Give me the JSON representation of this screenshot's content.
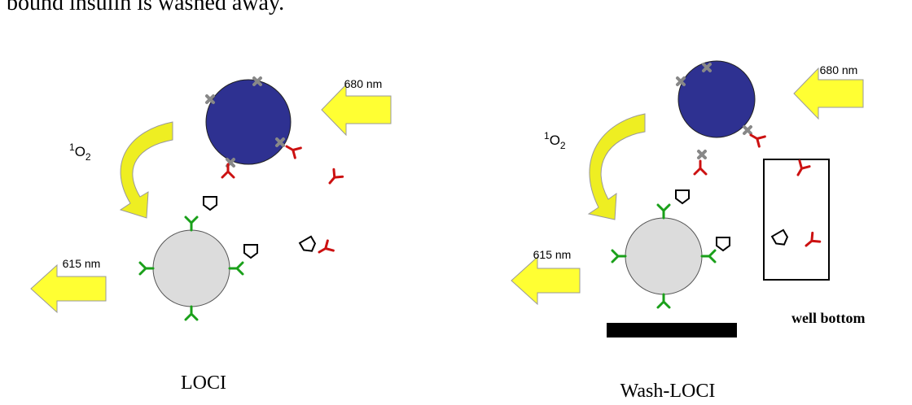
{
  "header": {
    "text": "bound insulin is washed away."
  },
  "panels": [
    {
      "caption": "LOCI",
      "excitation": "680 nm",
      "emission": "615 nm",
      "singlet_oxygen": {
        "mass": "1",
        "symbol": "O",
        "count": "2"
      }
    },
    {
      "caption": "Wash-LOCI",
      "excitation": "680 nm",
      "emission": "615 nm",
      "singlet_oxygen": {
        "mass": "1",
        "symbol": "O",
        "count": "2"
      },
      "well_label": "well bottom"
    }
  ]
}
